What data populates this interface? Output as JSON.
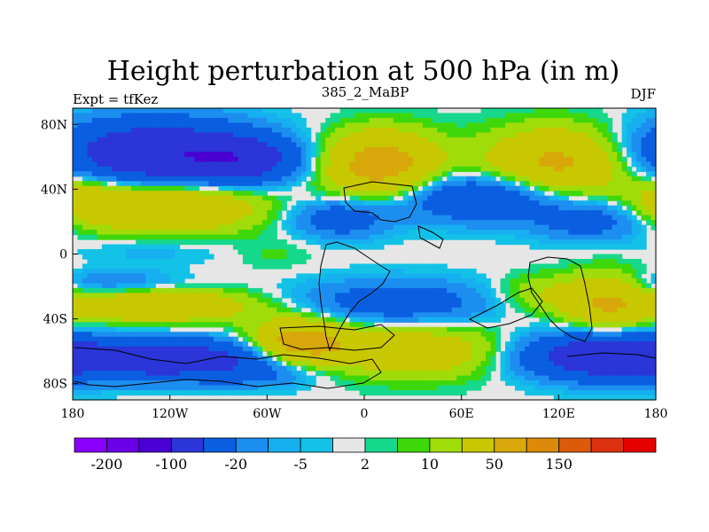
{
  "chart_data": {
    "type": "heatmap",
    "title": "Height perturbation at 500 hPa (in m)",
    "left_string": "Expt = tfKez",
    "center_string": "385_2_MaBP",
    "right_string": "DJF",
    "units": "m",
    "xlabel": "",
    "ylabel": "",
    "x_ticks": [
      "180",
      "120W",
      "60W",
      "0",
      "60E",
      "120E",
      "180"
    ],
    "x_tick_values": [
      -180,
      -120,
      -60,
      0,
      60,
      120,
      180
    ],
    "y_ticks": [
      "80N",
      "40N",
      "0",
      "40S",
      "80S"
    ],
    "y_tick_values": [
      80,
      40,
      0,
      -40,
      -80
    ],
    "xlim": [
      -180,
      180
    ],
    "ylim": [
      -90,
      90
    ],
    "colorbar": {
      "tick_labels": [
        "-200",
        "-100",
        "-20",
        "-5",
        "2",
        "10",
        "50",
        "150"
      ],
      "colors": [
        "#8a00ff",
        "#6a00e6",
        "#4a00d2",
        "#2b35d8",
        "#0a5fe0",
        "#1c8ef0",
        "#16b0f0",
        "#13c2e6",
        "#e6e6e6",
        "#16d88c",
        "#3ed80a",
        "#9fdc0a",
        "#c8c800",
        "#d8a80a",
        "#dd8a0a",
        "#dd5a0a",
        "#dd3010",
        "#e60000"
      ]
    },
    "field_blobs": [
      {
        "lon": -130,
        "lat": 62,
        "rlon": 60,
        "rlat": 20,
        "amp": -90
      },
      {
        "lon": -75,
        "lat": 58,
        "rlon": 35,
        "rlat": 14,
        "amp": -60
      },
      {
        "lon": -120,
        "lat": 30,
        "rlon": 55,
        "rlat": 16,
        "amp": 55
      },
      {
        "lon": -170,
        "lat": 35,
        "rlon": 25,
        "rlat": 15,
        "amp": 25
      },
      {
        "lon": 10,
        "lat": 55,
        "rlon": 35,
        "rlat": 20,
        "amp": 70
      },
      {
        "lon": 120,
        "lat": 55,
        "rlon": 45,
        "rlat": 22,
        "amp": 60
      },
      {
        "lon": 75,
        "lat": 35,
        "rlon": 55,
        "rlat": 15,
        "amp": -50
      },
      {
        "lon": -15,
        "lat": 22,
        "rlon": 30,
        "rlat": 12,
        "amp": -35
      },
      {
        "lon": 140,
        "lat": 20,
        "rlon": 35,
        "rlat": 12,
        "amp": -30
      },
      {
        "lon": -130,
        "lat": 2,
        "rlon": 45,
        "rlat": 8,
        "amp": -8
      },
      {
        "lon": -55,
        "lat": 0,
        "rlon": 25,
        "rlat": 10,
        "amp": 6
      },
      {
        "lon": -130,
        "lat": -32,
        "rlon": 60,
        "rlat": 10,
        "amp": 50
      },
      {
        "lon": -155,
        "lat": -18,
        "rlon": 40,
        "rlat": 8,
        "amp": -20
      },
      {
        "lon": 20,
        "lat": -30,
        "rlon": 60,
        "rlat": 14,
        "amp": -35
      },
      {
        "lon": 110,
        "lat": -25,
        "rlon": 30,
        "rlat": 12,
        "amp": 20
      },
      {
        "lon": 150,
        "lat": -30,
        "rlon": 25,
        "rlat": 18,
        "amp": 45
      },
      {
        "lon": -120,
        "lat": -65,
        "rlon": 70,
        "rlat": 12,
        "amp": -80
      },
      {
        "lon": -40,
        "lat": -55,
        "rlon": 30,
        "rlat": 14,
        "amp": 70
      },
      {
        "lon": 30,
        "lat": -60,
        "rlon": 60,
        "rlat": 16,
        "amp": 40
      },
      {
        "lon": 145,
        "lat": -63,
        "rlon": 50,
        "rlat": 14,
        "amp": -80
      },
      {
        "lon": -60,
        "lat": -75,
        "rlon": 35,
        "rlat": 8,
        "amp": -15
      }
    ]
  }
}
